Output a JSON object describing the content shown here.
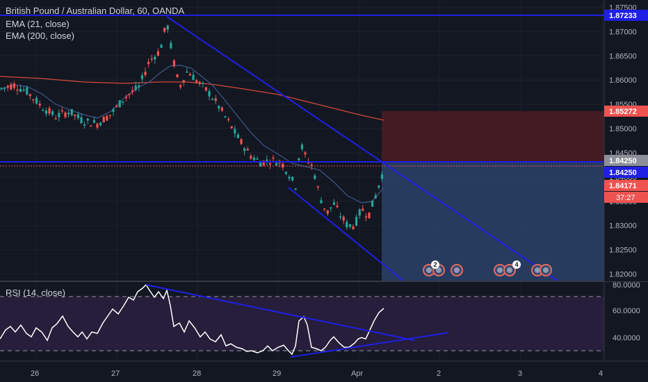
{
  "legend": {
    "symbol_title": "British Pound / Australian Dollar, 60, OANDA",
    "ema21": "EMA (21, close)",
    "ema200": "EMA (200, close)",
    "rsi": "RSI (14, close)"
  },
  "price_axis": {
    "ticks": [
      "1.87500",
      "1.87000",
      "1.86500",
      "1.86000",
      "1.85500",
      "1.85000",
      "1.84500",
      "1.84000",
      "1.83500",
      "1.83000",
      "1.82500",
      "1.82000"
    ],
    "labels": {
      "upper_line": "1.87233",
      "stop_level": "1.85272",
      "entry_level": "1.84250",
      "current_line": "1.84250",
      "last_price": "1.84171",
      "countdown": "37:27"
    }
  },
  "rsi_axis": {
    "ticks": [
      "80.0000",
      "60.0000",
      "40.0000"
    ]
  },
  "time_axis": {
    "ticks": [
      "26",
      "27",
      "28",
      "29",
      "Apr",
      "2",
      "3",
      "4"
    ]
  },
  "events": {
    "badge_a": "2",
    "badge_b": "4"
  },
  "colors": {
    "background": "#131722",
    "up": "#26a69a",
    "down": "#ef5350",
    "trendline": "#1f1fe6",
    "ema21": "#3d5a8a",
    "ema200": "#d84a3c",
    "rsi_line": "#ffffff",
    "rsi_band": "#2a2040",
    "stop_zone": "#4a1c24",
    "target_zone": "#2a3f66"
  },
  "chart_data": {
    "type": "candlestick",
    "instrument": "British Pound / Australian Dollar",
    "interval": "60",
    "source": "OANDA",
    "y_range": [
      1.8185,
      1.8765
    ],
    "x_labels": [
      "26",
      "27",
      "28",
      "29",
      "Apr",
      "2",
      "3",
      "4"
    ],
    "horizontal_levels": {
      "resistance": 1.87233,
      "entry": 1.8425,
      "stop": 1.85272
    },
    "last_price": 1.84171,
    "rsi": {
      "overbought": 70,
      "oversold": 30,
      "last": 60
    }
  }
}
